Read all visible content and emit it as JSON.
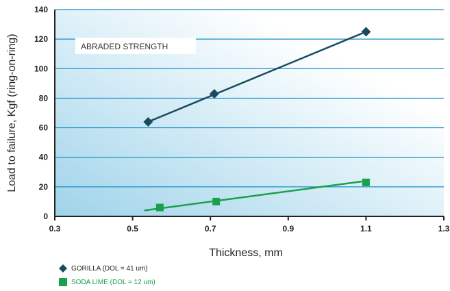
{
  "chart_data": {
    "type": "line",
    "title": "",
    "annotation": "ABRADED STRENGTH",
    "xlabel": "Thickness, mm",
    "ylabel": "Load to failure, Kgf (ring-on-ring)",
    "xlim": [
      0.3,
      1.3
    ],
    "ylim": [
      0,
      140
    ],
    "xticks": [
      "0.3",
      "0.5",
      "0.7",
      "0.9",
      "1.1",
      "1.3"
    ],
    "yticks": [
      "0",
      "20",
      "40",
      "60",
      "80",
      "100",
      "120",
      "140"
    ],
    "grid": "horizontal",
    "legend_position": "bottom-left",
    "series": [
      {
        "name": "GORILLA (DOL = 41 um)",
        "color": "#1b4a5e",
        "marker": "diamond",
        "points": [
          {
            "x": 0.54,
            "y": 64
          },
          {
            "x": 0.71,
            "y": 83
          },
          {
            "x": 1.1,
            "y": 125
          }
        ],
        "fit": [
          {
            "x": 0.54,
            "y": 64
          },
          {
            "x": 1.1,
            "y": 125
          }
        ]
      },
      {
        "name": "SODA LIME (DOL = 12 um)",
        "color": "#18a04a",
        "marker": "square",
        "points": [
          {
            "x": 0.57,
            "y": 6
          },
          {
            "x": 0.715,
            "y": 10
          },
          {
            "x": 1.1,
            "y": 23
          }
        ],
        "fit": [
          {
            "x": 0.53,
            "y": 4
          },
          {
            "x": 1.1,
            "y": 24
          }
        ]
      }
    ]
  }
}
